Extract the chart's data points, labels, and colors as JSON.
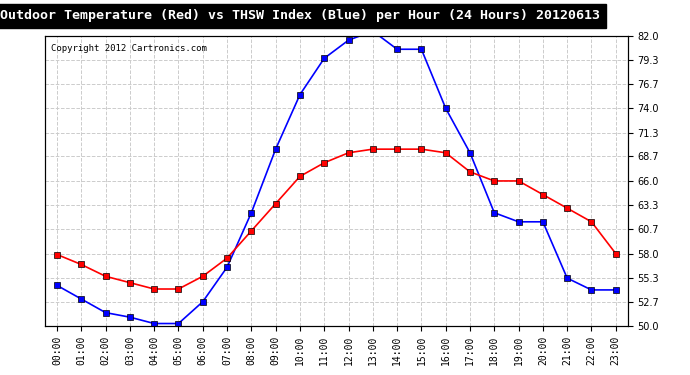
{
  "title": "Outdoor Temperature (Red) vs THSW Index (Blue) per Hour (24 Hours) 20120613",
  "copyright": "Copyright 2012 Cartronics.com",
  "hours": [
    "00:00",
    "01:00",
    "02:00",
    "03:00",
    "04:00",
    "05:00",
    "06:00",
    "07:00",
    "08:00",
    "09:00",
    "10:00",
    "11:00",
    "12:00",
    "13:00",
    "14:00",
    "15:00",
    "16:00",
    "17:00",
    "18:00",
    "19:00",
    "20:00",
    "21:00",
    "22:00",
    "23:00"
  ],
  "red_temp": [
    57.9,
    56.8,
    55.5,
    54.8,
    54.1,
    54.1,
    55.5,
    57.5,
    60.5,
    63.5,
    66.5,
    68.0,
    69.1,
    69.5,
    69.5,
    69.5,
    69.1,
    67.0,
    66.0,
    66.0,
    64.5,
    63.0,
    61.5,
    58.0
  ],
  "blue_thsw": [
    54.5,
    53.0,
    51.5,
    51.0,
    50.3,
    50.3,
    52.7,
    56.5,
    62.5,
    69.5,
    75.5,
    79.5,
    81.5,
    82.5,
    80.5,
    80.5,
    74.0,
    69.1,
    62.5,
    61.5,
    61.5,
    55.3,
    54.0,
    54.0
  ],
  "ylim": [
    50.0,
    82.0
  ],
  "yticks": [
    50.0,
    52.7,
    55.3,
    58.0,
    60.7,
    63.3,
    66.0,
    68.7,
    71.3,
    74.0,
    76.7,
    79.3,
    82.0
  ],
  "bg_color": "#ffffff",
  "plot_bg_color": "#ffffff",
  "grid_color": "#cccccc",
  "title_bg_color": "#000000",
  "title_text_color": "#ffffff",
  "red_color": "#ff0000",
  "blue_color": "#0000ff",
  "marker": "s",
  "marker_size": 4,
  "marker_color": "#000000"
}
